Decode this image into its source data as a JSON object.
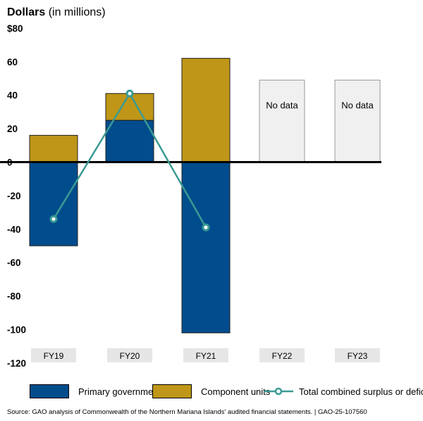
{
  "header": {
    "title_bold": "Dollars",
    "title_rest": "(in millions)"
  },
  "colors": {
    "primary": "#004c8c",
    "component": "#bf9617",
    "line": "#3a9a94",
    "nodata_fill": "#f0f0f0",
    "tick_bg": "#e6e6e6"
  },
  "chart_data": {
    "type": "bar",
    "stacked": true,
    "categories": [
      "FY19",
      "FY20",
      "FY21",
      "FY22",
      "FY23"
    ],
    "series": [
      {
        "name": "Primary government",
        "type": "bar",
        "values": [
          -50,
          25,
          -102,
          null,
          null
        ]
      },
      {
        "name": "Component units",
        "type": "bar",
        "values": [
          16,
          16,
          62,
          null,
          null
        ]
      },
      {
        "name": "Total combined surplus or deficit",
        "type": "line",
        "values": [
          -34,
          41,
          -39,
          null,
          null
        ]
      }
    ],
    "no_data": [
      {
        "category": "FY22",
        "label": "No data"
      },
      {
        "category": "FY23",
        "label": "No data"
      }
    ],
    "y_ticks": [
      "$80",
      "60",
      "40",
      "20",
      "0",
      "-20",
      "-40",
      "-60",
      "-80",
      "-100",
      "-120"
    ],
    "y_tick_values": [
      80,
      60,
      40,
      20,
      0,
      -20,
      -40,
      -60,
      -80,
      -100,
      -120
    ],
    "ylim": [
      -120,
      80
    ],
    "ylabel": "Dollars (in millions)",
    "grid": false,
    "legend_position": "bottom"
  },
  "legend": [
    {
      "label": "Primary government"
    },
    {
      "label": "Component units"
    },
    {
      "label": "Total combined surplus or deficit"
    }
  ],
  "source": "Source: GAO analysis of Commonwealth of the Northern Mariana Islands' audited financial statements.  |  GAO-25-107560"
}
